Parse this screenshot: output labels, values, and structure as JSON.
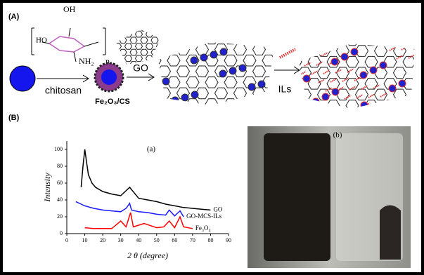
{
  "scheme": {
    "label": "(A)",
    "chitosan_oh": "OH",
    "chitosan_ho": "HO",
    "chitosan_nh2": "NH₂",
    "chitosan_n": "n",
    "step1": "chitosan",
    "product1": "Fe₂O₃/CS",
    "step2": "GO",
    "step3": "ILs"
  },
  "panel_b": {
    "label": "(B)",
    "photo_label": "(b)"
  },
  "chart_data": {
    "type": "line",
    "title": "(a)",
    "x_label": "2 θ (degree)",
    "y_label": "Intensity",
    "xlim": [
      0,
      90
    ],
    "xticks": [
      0,
      10,
      20,
      30,
      40,
      50,
      60,
      70,
      80,
      90
    ],
    "ylim": [
      0,
      110
    ],
    "yticks": [
      0,
      20,
      40,
      60,
      80,
      100
    ],
    "series": [
      {
        "name": "GO",
        "color": "#000000",
        "x": [
          8,
          9,
          10,
          11,
          12,
          14,
          16,
          20,
          25,
          30,
          35,
          40,
          45,
          50,
          55,
          60,
          65,
          70,
          75,
          80
        ],
        "values": [
          55,
          80,
          100,
          85,
          70,
          60,
          55,
          50,
          47,
          45,
          55,
          42,
          40,
          38,
          35,
          33,
          31,
          30,
          29,
          28
        ]
      },
      {
        "name": "GO-MCS-ILs",
        "color": "#1a1aff",
        "x": [
          5,
          8,
          10,
          15,
          20,
          25,
          30,
          33,
          35,
          36,
          40,
          45,
          50,
          55,
          57,
          60,
          63,
          65
        ],
        "values": [
          38,
          35,
          33,
          30,
          28,
          27,
          26,
          30,
          36,
          28,
          26,
          25,
          23,
          22,
          28,
          21,
          27,
          20
        ]
      },
      {
        "name": "Fe₃O₄",
        "color": "#ff0000",
        "x": [
          10,
          15,
          20,
          25,
          30,
          33,
          35.5,
          37,
          43,
          50,
          54,
          57,
          60,
          63,
          65,
          70
        ],
        "values": [
          7,
          6,
          6,
          6,
          15,
          8,
          25,
          8,
          12,
          7,
          8,
          15,
          7,
          20,
          8,
          6
        ]
      }
    ]
  }
}
